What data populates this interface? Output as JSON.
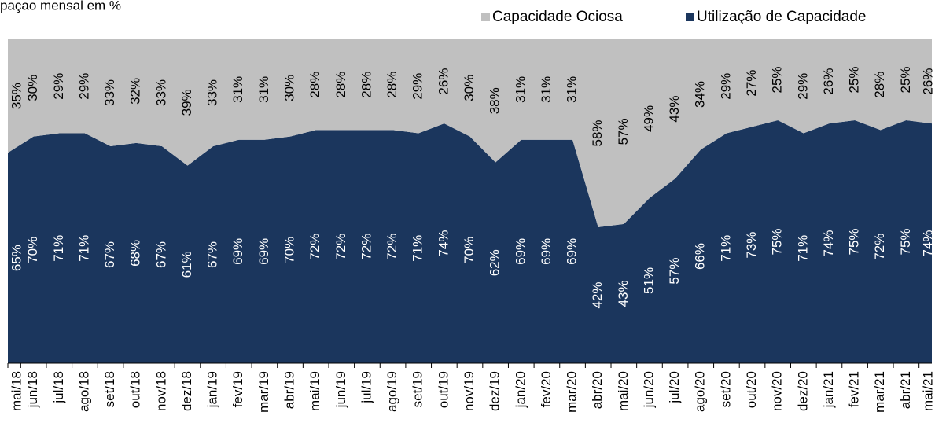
{
  "chart_data": {
    "type": "stacked_area",
    "subtitle": "paçao mensal em %",
    "categories": [
      "mai/18",
      "jun/18",
      "jul/18",
      "ago/18",
      "set/18",
      "out/18",
      "nov/18",
      "dez/18",
      "jan/19",
      "fev/19",
      "mar/19",
      "abr/19",
      "mai/19",
      "jun/19",
      "jul/19",
      "ago/19",
      "set/19",
      "out/19",
      "nov/19",
      "dez/19",
      "jan/20",
      "fev/20",
      "mar/20",
      "abr/20",
      "mai/20",
      "jun/20",
      "jul/20",
      "ago/20",
      "set/20",
      "out/20",
      "nov/20",
      "dez/20",
      "jan/21",
      "fev/21",
      "mar/21",
      "abr/21",
      "mai/21"
    ],
    "series": [
      {
        "name": "Utilização de Capacidade",
        "color": "#1b365d",
        "label_color": "#ffffff",
        "values": [
          65,
          70,
          71,
          71,
          67,
          68,
          67,
          61,
          67,
          69,
          69,
          70,
          72,
          72,
          72,
          72,
          71,
          74,
          70,
          62,
          69,
          69,
          69,
          42,
          43,
          51,
          57,
          66,
          71,
          73,
          75,
          71,
          74,
          75,
          72,
          75,
          74
        ],
        "value_labels": [
          "65%",
          "70%",
          "71%",
          "71%",
          "67%",
          "68%",
          "67%",
          "61%",
          "67%",
          "69%",
          "69%",
          "70%",
          "72%",
          "72%",
          "72%",
          "72%",
          "71%",
          "74%",
          "70%",
          "62%",
          "69%",
          "69%",
          "69%",
          "42%",
          "43%",
          "51%",
          "57%",
          "66%",
          "71%",
          "73%",
          "75%",
          "71%",
          "74%",
          "75%",
          "72%",
          "75%",
          "74%"
        ]
      },
      {
        "name": "Capacidade Ociosa",
        "color": "#c0c0c0",
        "label_color": "#000000",
        "values": [
          35,
          30,
          29,
          29,
          33,
          32,
          33,
          39,
          33,
          31,
          31,
          30,
          28,
          28,
          28,
          28,
          29,
          26,
          30,
          38,
          31,
          31,
          31,
          58,
          57,
          49,
          43,
          34,
          29,
          27,
          25,
          29,
          26,
          25,
          28,
          25,
          26
        ],
        "value_labels": [
          "35%",
          "30%",
          "29%",
          "29%",
          "33%",
          "32%",
          "33%",
          "39%",
          "33%",
          "31%",
          "31%",
          "30%",
          "28%",
          "28%",
          "28%",
          "28%",
          "29%",
          "26%",
          "30%",
          "38%",
          "31%",
          "31%",
          "31%",
          "58%",
          "57%",
          "49%",
          "43%",
          "34%",
          "29%",
          "27%",
          "25%",
          "29%",
          "26%",
          "25%",
          "28%",
          "25%",
          "26%"
        ]
      }
    ],
    "ylim": [
      0,
      100
    ]
  }
}
